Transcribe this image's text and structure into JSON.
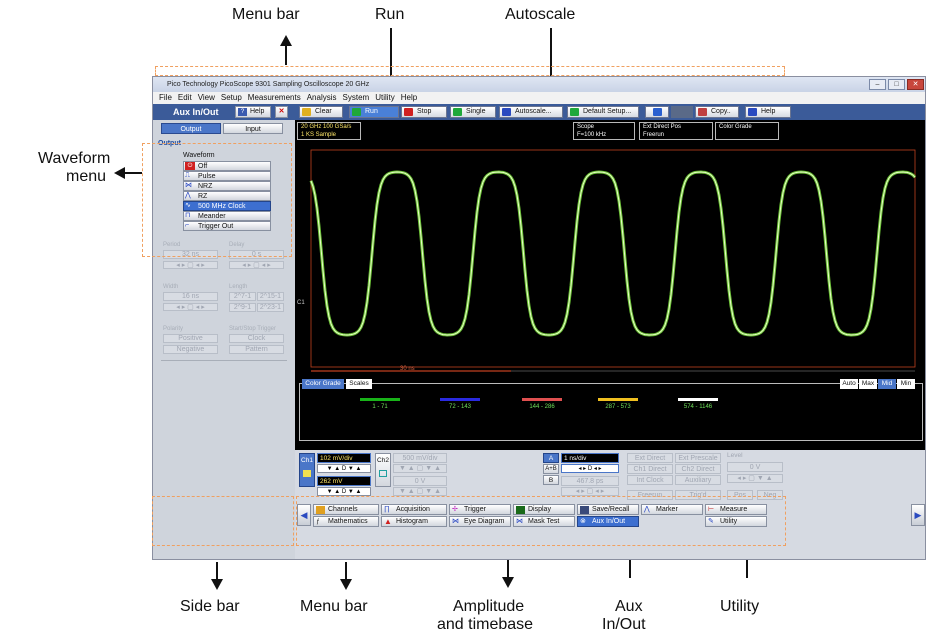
{
  "annotations": {
    "menu_bar_top": "Menu bar",
    "run": "Run",
    "autoscale": "Autoscale",
    "waveform_menu_line1": "Waveform",
    "waveform_menu_line2": "menu",
    "side_bar": "Side bar",
    "menu_bar_bottom": "Menu bar",
    "amp_line1": "Amplitude",
    "amp_line2": "and timebase",
    "aux_line1": "Aux",
    "aux_line2": "In/Out",
    "utility": "Utility"
  },
  "window": {
    "title": "Pico Technology   PicoScope 9301   Sampling Oscilloscope 20 GHz",
    "minimize": "–",
    "maximize": "□",
    "close": "✕"
  },
  "menu": [
    "File",
    "Edit",
    "View",
    "Setup",
    "Measurements",
    "Analysis",
    "System",
    "Utility",
    "Help"
  ],
  "sidebar": {
    "title": "Aux In/Out",
    "help": "Help",
    "tab_output": "Output",
    "tab_input": "Input",
    "section": "Output",
    "waveform_label": "Waveform",
    "waveforms": [
      "Off",
      "Pulse",
      "NRZ",
      "RZ",
      "500 MHz Clock",
      "Meander",
      "Trigger Out"
    ],
    "selected_waveform": "500 MHz Clock",
    "period_label": "Period",
    "period_value": "32 ns",
    "delay_label": "Delay",
    "delay_value": "0 s",
    "width_label": "Width",
    "width_value": "16 ns",
    "length_label": "Length",
    "length_opts": [
      "2^7-1",
      "2^15-1",
      "2^9-1",
      "2^23-1"
    ],
    "polarity_label": "Polarity",
    "polarity_pos": "Positive",
    "polarity_neg": "Negative",
    "startstop_label": "Start/Stop Trigger",
    "startstop_clock": "Clock",
    "startstop_pattern": "Pattern"
  },
  "toolbar": {
    "clear": "Clear",
    "run": "Run",
    "stop": "Stop",
    "single": "Single",
    "autoscale": "Autoscale...",
    "default_setup": "Default Setup...",
    "copy": "Copy..",
    "help": "Help"
  },
  "screen": {
    "info1_line1": "20 GHz   100 GSa/s",
    "info1_line2": "1 KS      Sample",
    "scope_line1": "Scope",
    "scope_line2": "F=100 kHz",
    "ext_line1": "Ext Direct    Pos",
    "ext_line2": "Freerun",
    "color_grade": "Color Grade",
    "ch_marker": "C1",
    "time_marker": "30 ns",
    "legend_btn": "Color Grade",
    "scales_btn": "Scales",
    "auto_btn": "Auto",
    "max_btn": "Max",
    "mid_btn": "Mid",
    "min_btn": "Min",
    "bins": [
      {
        "label": "1 - 71",
        "color": "#19b319"
      },
      {
        "label": "72 - 143",
        "color": "#2a2ae0"
      },
      {
        "label": "144 - 286",
        "color": "#e05050"
      },
      {
        "label": "287 - 573",
        "color": "#f0c020"
      },
      {
        "label": "574 - 1146",
        "color": "#ffffff"
      }
    ]
  },
  "controls": {
    "ch1": "Ch1",
    "ch1_scale": "102 mV/div",
    "ch1_offset": "262 mV",
    "ch2": "Ch2",
    "ch2_scale": "500 mV/div",
    "ch2_offset": "0 V",
    "tb_a": "A",
    "tb_ab": "A+B",
    "tb_b": "B",
    "timebase": "1 ns/div",
    "delay": "467.8 ps",
    "trig_ext_direct": "Ext Direct",
    "trig_ext_prescale": "Ext Prescale",
    "trig_ch1_direct": "Ch1 Direct",
    "trig_ch2_direct": "Ch2 Direct",
    "trig_int_clock": "Int Clock",
    "trig_auxiliary": "Auxiliary",
    "trig_level_label": "Level",
    "trig_level": "0 V",
    "freerun": "Freerun",
    "trigd": "Trig'd",
    "pos": "Pos",
    "neg": "Neg",
    "step_d": "D"
  },
  "bottom_menu": {
    "channels": "Channels",
    "acquisition": "Acquisition",
    "trigger": "Trigger",
    "display": "Display",
    "save_recall": "Save/Recall",
    "marker": "Marker",
    "measure": "Measure",
    "mathematics": "Mathematics",
    "histogram": "Histogram",
    "eye_diagram": "Eye Diagram",
    "mask_test": "Mask Test",
    "aux_in_out": "Aux In/Out",
    "utility": "Utility"
  }
}
